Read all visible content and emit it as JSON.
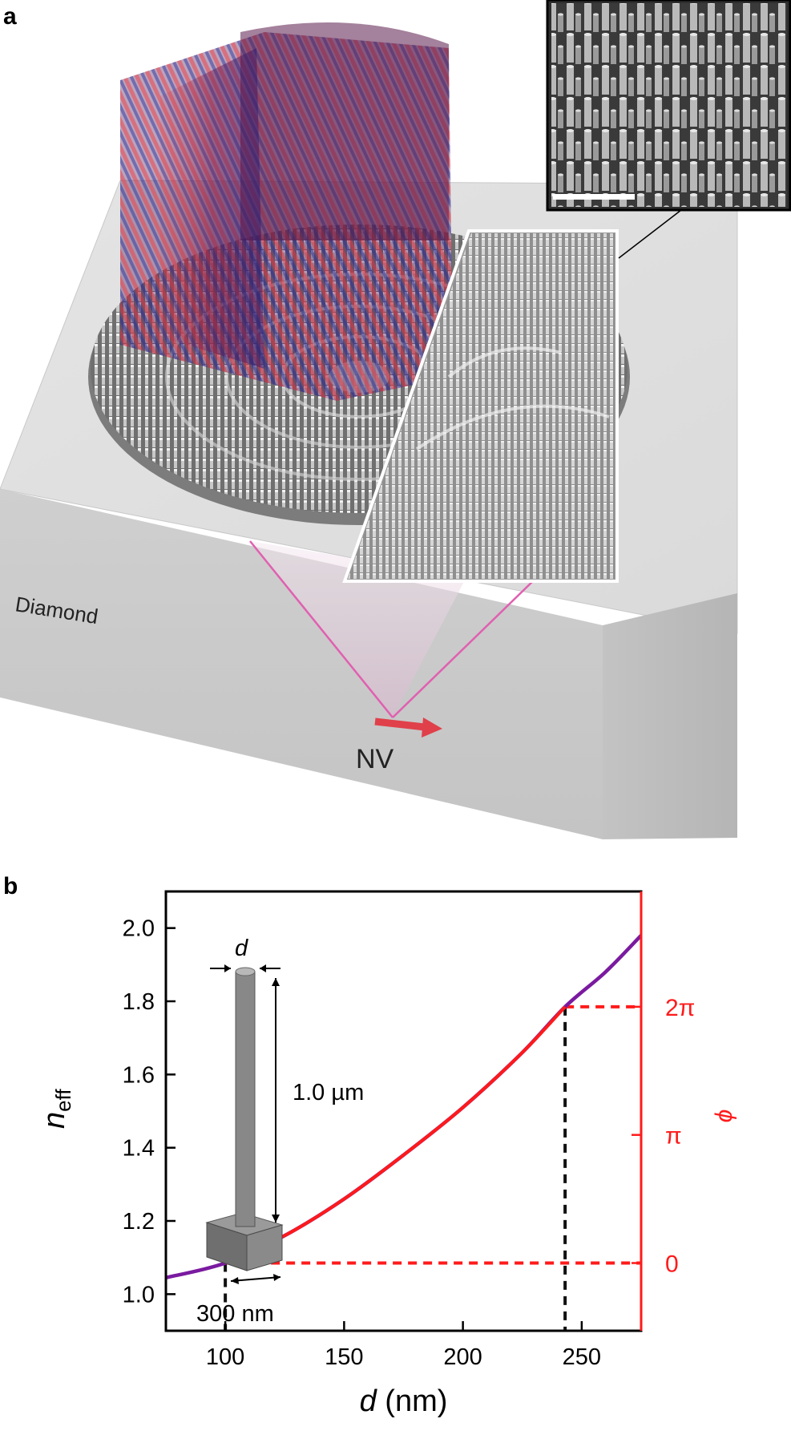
{
  "panel_a": {
    "label": "a",
    "substrate_label": "Diamond",
    "emitter_label": "NV"
  },
  "panel_b": {
    "label": "b",
    "inset": {
      "diameter_symbol": "d",
      "height_label": "1.0 µm",
      "base_label": "300 nm"
    }
  },
  "colors": {
    "neff_curve": "#7a1aa0",
    "phase_curve": "#ff1a1a",
    "right_axis": "#ff1a1a",
    "guide_black": "#111111",
    "arrow_nv": "#e0404a"
  },
  "chart_data": {
    "type": "line",
    "xlabel_symbol": "d",
    "xlabel_unit": " (nm)",
    "ylabel_main": "n",
    "ylabel_sub": "eff",
    "y2label": "ϕ",
    "xlim": [
      75,
      275
    ],
    "ylim": [
      0.9,
      2.1
    ],
    "x_ticks": [
      100,
      150,
      200,
      250
    ],
    "y_ticks": [
      1.0,
      1.2,
      1.4,
      1.6,
      1.8,
      2.0
    ],
    "y2_ticks": [
      {
        "label": "0",
        "neff": 1.085
      },
      {
        "label": "π",
        "neff": 1.435
      },
      {
        "label": "2π",
        "neff": 1.785
      }
    ],
    "series": [
      {
        "key": "neff",
        "x": [
          75,
          100,
          125,
          150,
          175,
          200,
          225,
          243,
          260,
          275
        ],
        "y": [
          1.045,
          1.085,
          1.16,
          1.26,
          1.38,
          1.51,
          1.66,
          1.785,
          1.88,
          1.98
        ]
      },
      {
        "key": "phase",
        "x": [
          100,
          125,
          150,
          175,
          200,
          225,
          243
        ],
        "y": [
          1.085,
          1.16,
          1.26,
          1.38,
          1.51,
          1.66,
          1.785
        ]
      }
    ],
    "guides": [
      {
        "x": 100,
        "y": 1.085
      },
      {
        "x": 243,
        "y": 1.785
      }
    ]
  }
}
